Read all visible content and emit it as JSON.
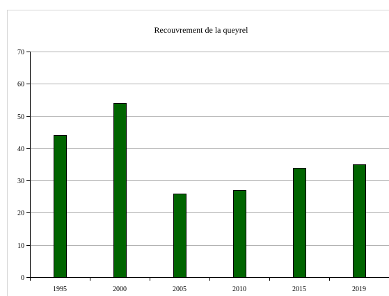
{
  "chart_data": {
    "type": "bar",
    "title": "Recouvrement de la queyrel",
    "categories": [
      "1995",
      "2000",
      "2005",
      "2010",
      "2015",
      "2019"
    ],
    "values": [
      44,
      54,
      26,
      27,
      34,
      35
    ],
    "xlabel": "",
    "ylabel": "",
    "ylim": [
      0,
      70
    ],
    "yticks": [
      0,
      10,
      20,
      30,
      40,
      50,
      60,
      70
    ],
    "grid": true,
    "legend": "none",
    "colors": {
      "bar_fill": "#006400",
      "bar_stroke": "#000000",
      "grid": "#b3b3b3",
      "axis": "#000000"
    }
  }
}
